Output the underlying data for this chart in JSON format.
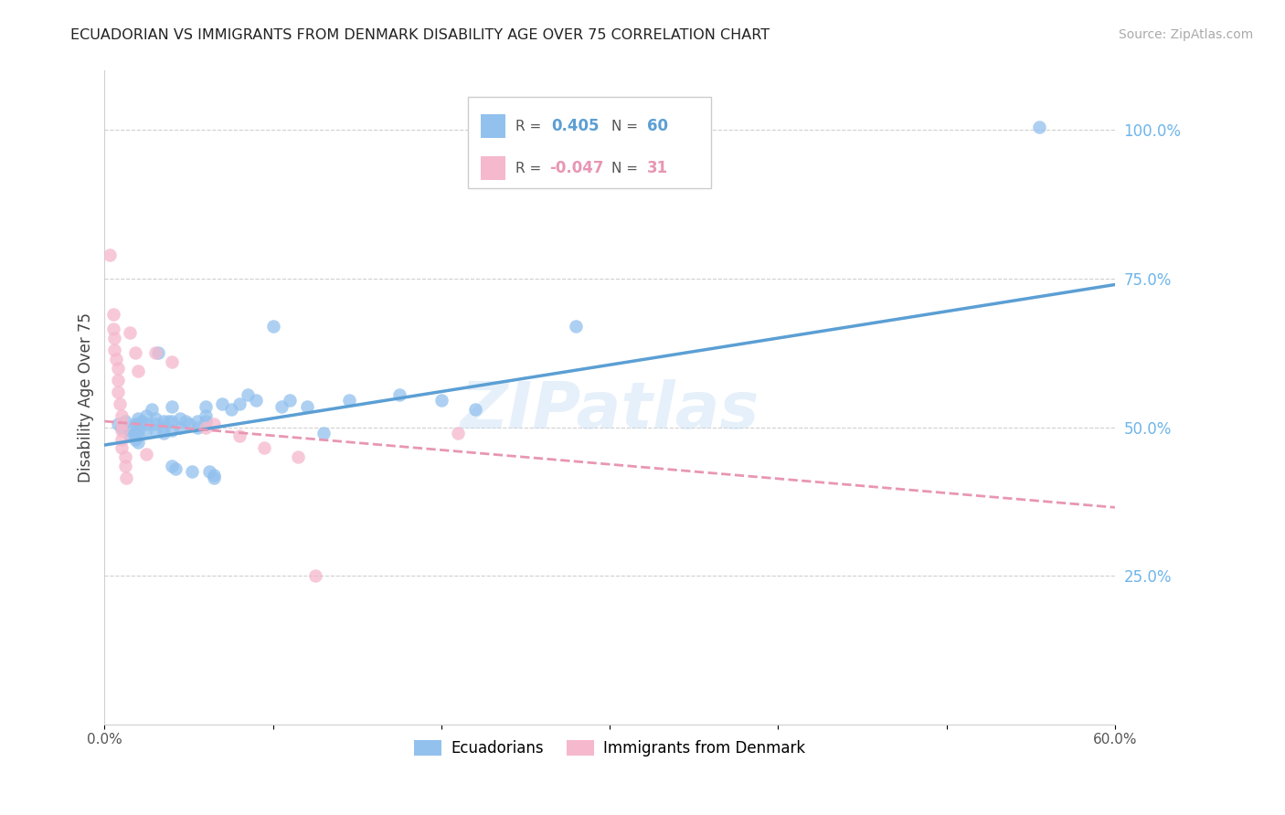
{
  "title": "ECUADORIAN VS IMMIGRANTS FROM DENMARK DISABILITY AGE OVER 75 CORRELATION CHART",
  "source": "Source: ZipAtlas.com",
  "ylabel": "Disability Age Over 75",
  "legend_label_blue": "Ecuadorians",
  "legend_label_pink": "Immigrants from Denmark",
  "r_blue_val": "0.405",
  "n_blue_val": "60",
  "r_pink_val": "-0.047",
  "n_pink_val": "31",
  "xlim": [
    0.0,
    0.6
  ],
  "ylim": [
    0.0,
    1.1
  ],
  "xticks": [
    0.0,
    0.1,
    0.2,
    0.3,
    0.4,
    0.5,
    0.6
  ],
  "xtick_labels": [
    "0.0%",
    "",
    "",
    "",
    "",
    "",
    "60.0%"
  ],
  "ytick_vals": [
    0.25,
    0.5,
    0.75,
    1.0
  ],
  "ytick_labels": [
    "25.0%",
    "50.0%",
    "75.0%",
    "100.0%"
  ],
  "blue_color": "#92C1EE",
  "pink_color": "#F5B8CC",
  "blue_line_color": "#5B9FD4",
  "pink_line_color": "#E896B4",
  "grid_color": "#D0D0D0",
  "right_label_color": "#6EB5EA",
  "blue_scatter": [
    [
      0.008,
      0.505
    ],
    [
      0.01,
      0.5
    ],
    [
      0.012,
      0.51
    ],
    [
      0.015,
      0.495
    ],
    [
      0.015,
      0.485
    ],
    [
      0.018,
      0.505
    ],
    [
      0.018,
      0.49
    ],
    [
      0.018,
      0.48
    ],
    [
      0.02,
      0.515
    ],
    [
      0.02,
      0.505
    ],
    [
      0.02,
      0.495
    ],
    [
      0.02,
      0.485
    ],
    [
      0.02,
      0.475
    ],
    [
      0.022,
      0.51
    ],
    [
      0.025,
      0.52
    ],
    [
      0.025,
      0.505
    ],
    [
      0.025,
      0.495
    ],
    [
      0.028,
      0.53
    ],
    [
      0.03,
      0.515
    ],
    [
      0.03,
      0.505
    ],
    [
      0.03,
      0.495
    ],
    [
      0.032,
      0.625
    ],
    [
      0.035,
      0.51
    ],
    [
      0.035,
      0.5
    ],
    [
      0.035,
      0.49
    ],
    [
      0.038,
      0.51
    ],
    [
      0.04,
      0.535
    ],
    [
      0.04,
      0.51
    ],
    [
      0.04,
      0.495
    ],
    [
      0.04,
      0.435
    ],
    [
      0.042,
      0.43
    ],
    [
      0.045,
      0.515
    ],
    [
      0.045,
      0.5
    ],
    [
      0.048,
      0.51
    ],
    [
      0.05,
      0.505
    ],
    [
      0.052,
      0.425
    ],
    [
      0.055,
      0.51
    ],
    [
      0.055,
      0.5
    ],
    [
      0.06,
      0.535
    ],
    [
      0.06,
      0.52
    ],
    [
      0.06,
      0.51
    ],
    [
      0.062,
      0.425
    ],
    [
      0.065,
      0.42
    ],
    [
      0.065,
      0.415
    ],
    [
      0.07,
      0.54
    ],
    [
      0.075,
      0.53
    ],
    [
      0.08,
      0.54
    ],
    [
      0.085,
      0.555
    ],
    [
      0.09,
      0.545
    ],
    [
      0.1,
      0.67
    ],
    [
      0.105,
      0.535
    ],
    [
      0.11,
      0.545
    ],
    [
      0.12,
      0.535
    ],
    [
      0.13,
      0.49
    ],
    [
      0.145,
      0.545
    ],
    [
      0.175,
      0.555
    ],
    [
      0.2,
      0.545
    ],
    [
      0.22,
      0.53
    ],
    [
      0.28,
      0.67
    ],
    [
      0.555,
      1.005
    ]
  ],
  "pink_scatter": [
    [
      0.003,
      0.79
    ],
    [
      0.005,
      0.69
    ],
    [
      0.005,
      0.665
    ],
    [
      0.006,
      0.65
    ],
    [
      0.006,
      0.63
    ],
    [
      0.007,
      0.615
    ],
    [
      0.008,
      0.6
    ],
    [
      0.008,
      0.58
    ],
    [
      0.008,
      0.56
    ],
    [
      0.009,
      0.54
    ],
    [
      0.01,
      0.52
    ],
    [
      0.01,
      0.505
    ],
    [
      0.01,
      0.495
    ],
    [
      0.01,
      0.48
    ],
    [
      0.01,
      0.465
    ],
    [
      0.012,
      0.45
    ],
    [
      0.012,
      0.435
    ],
    [
      0.013,
      0.415
    ],
    [
      0.015,
      0.66
    ],
    [
      0.018,
      0.625
    ],
    [
      0.02,
      0.595
    ],
    [
      0.025,
      0.455
    ],
    [
      0.03,
      0.625
    ],
    [
      0.04,
      0.61
    ],
    [
      0.06,
      0.5
    ],
    [
      0.065,
      0.505
    ],
    [
      0.08,
      0.485
    ],
    [
      0.095,
      0.465
    ],
    [
      0.115,
      0.45
    ],
    [
      0.125,
      0.25
    ],
    [
      0.21,
      0.49
    ]
  ],
  "blue_trendline_x": [
    0.0,
    0.6
  ],
  "blue_trendline_y": [
    0.47,
    0.74
  ],
  "pink_trendline_x": [
    0.0,
    0.6
  ],
  "pink_trendline_y": [
    0.51,
    0.365
  ]
}
